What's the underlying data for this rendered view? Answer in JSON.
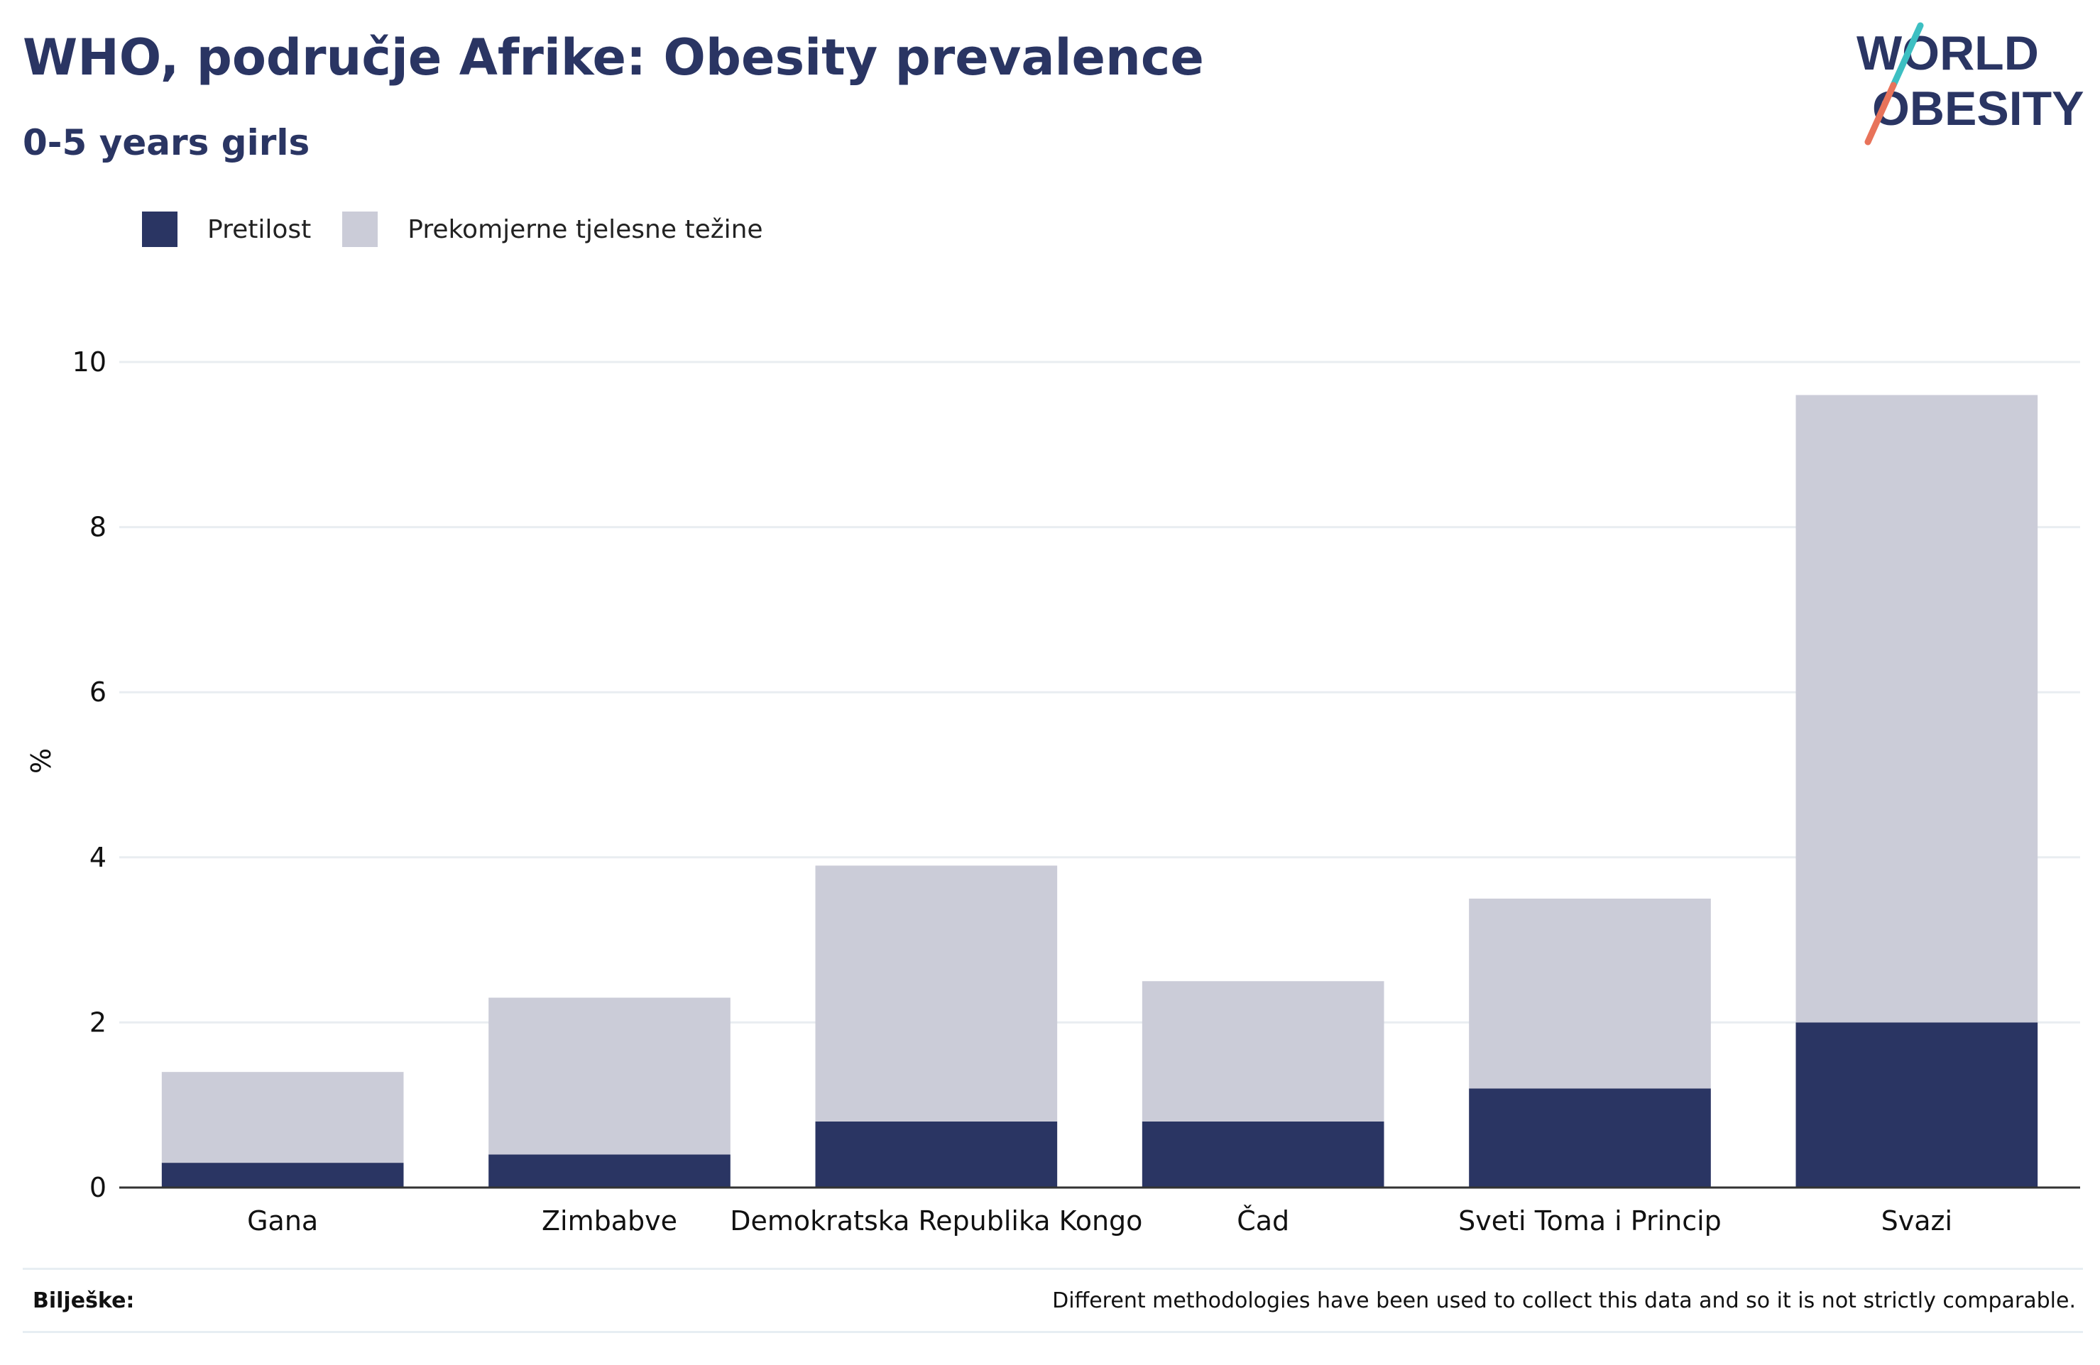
{
  "header": {
    "title": "WHO, područje Afrike: Obesity prevalence",
    "subtitle": "0-5 years girls"
  },
  "logo": {
    "line1": "WORLD",
    "line2": "OBESITY"
  },
  "legend": [
    {
      "label": "Pretilost",
      "color": "#2a3563"
    },
    {
      "label": "Prekomjerne tjelesne težine",
      "color": "#cbccd8"
    }
  ],
  "chart_data": {
    "type": "bar",
    "stacked": true,
    "categories": [
      "Gana",
      "Zimbabve",
      "Demokratska Republika Kongo",
      "Čad",
      "Sveti Toma i Princip",
      "Svazi"
    ],
    "series": [
      {
        "name": "Pretilost",
        "color": "#2a3563",
        "values": [
          0.3,
          0.4,
          0.8,
          0.8,
          1.2,
          2.0
        ]
      },
      {
        "name": "Prekomjerne tjelesne težine",
        "color": "#cbccd8",
        "values": [
          1.1,
          1.9,
          3.1,
          1.7,
          2.3,
          7.6
        ]
      }
    ],
    "ylabel": "%",
    "ylim": [
      0,
      10
    ],
    "yticks": [
      0,
      2,
      4,
      6,
      8,
      10
    ],
    "grid": true
  },
  "notes": {
    "label": "Bilješke:",
    "text": "Different methodologies have been used to collect this data and so it is not strictly comparable."
  }
}
